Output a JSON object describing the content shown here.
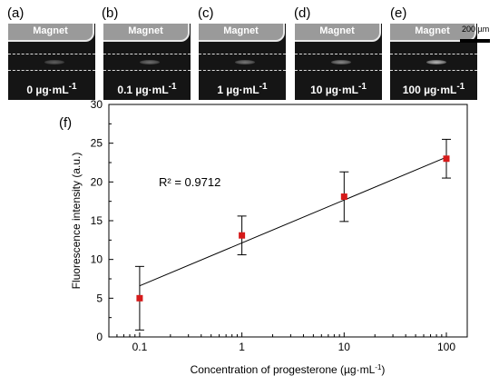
{
  "panels": [
    {
      "label": "(a)",
      "magnet": "Magnet",
      "concentration": "0 µg·mL",
      "unit_exp": "-1",
      "intensity": 0.45
    },
    {
      "label": "(b)",
      "magnet": "Magnet",
      "concentration": "0.1 µg·mL",
      "unit_exp": "-1",
      "intensity": 0.55
    },
    {
      "label": "(c)",
      "magnet": "Magnet",
      "concentration": "1 µg·mL",
      "unit_exp": "-1",
      "intensity": 0.6
    },
    {
      "label": "(d)",
      "magnet": "Magnet",
      "concentration": "10 µg·mL",
      "unit_exp": "-1",
      "intensity": 0.7
    },
    {
      "label": "(e)",
      "magnet": "Magnet",
      "concentration": "100 µg·mL",
      "unit_exp": "-1",
      "intensity": 1.0
    }
  ],
  "scale_bar": "200 µm",
  "chart_data": {
    "panel_label": "(f)",
    "type": "scatter",
    "x_scale": "log",
    "x": [
      0.1,
      1,
      10,
      100
    ],
    "y": [
      5.0,
      13.1,
      18.1,
      23.0
    ],
    "y_err": [
      4.1,
      2.5,
      3.2,
      2.5
    ],
    "fit": {
      "x": [
        0.1,
        100
      ],
      "y": [
        6.6,
        23.2
      ]
    },
    "annotation": "R² = 0.9712",
    "xlabel": "Concentration of progesterone (µg·mL",
    "xlabel_sup": "-1",
    "xlabel_end": ")",
    "ylabel": "Fluorescence intensity (a.u.)",
    "xlim": [
      0.05,
      160
    ],
    "ylim": [
      0,
      30
    ],
    "x_ticks": [
      0.1,
      1,
      10,
      100
    ],
    "x_tick_labels": [
      "0.1",
      "1",
      "10",
      "100"
    ],
    "y_ticks": [
      0,
      5,
      10,
      15,
      20,
      25,
      30
    ],
    "y_tick_labels": [
      "0",
      "5",
      "10",
      "15",
      "20",
      "25",
      "30"
    ],
    "marker_color": "#d61a1a"
  }
}
